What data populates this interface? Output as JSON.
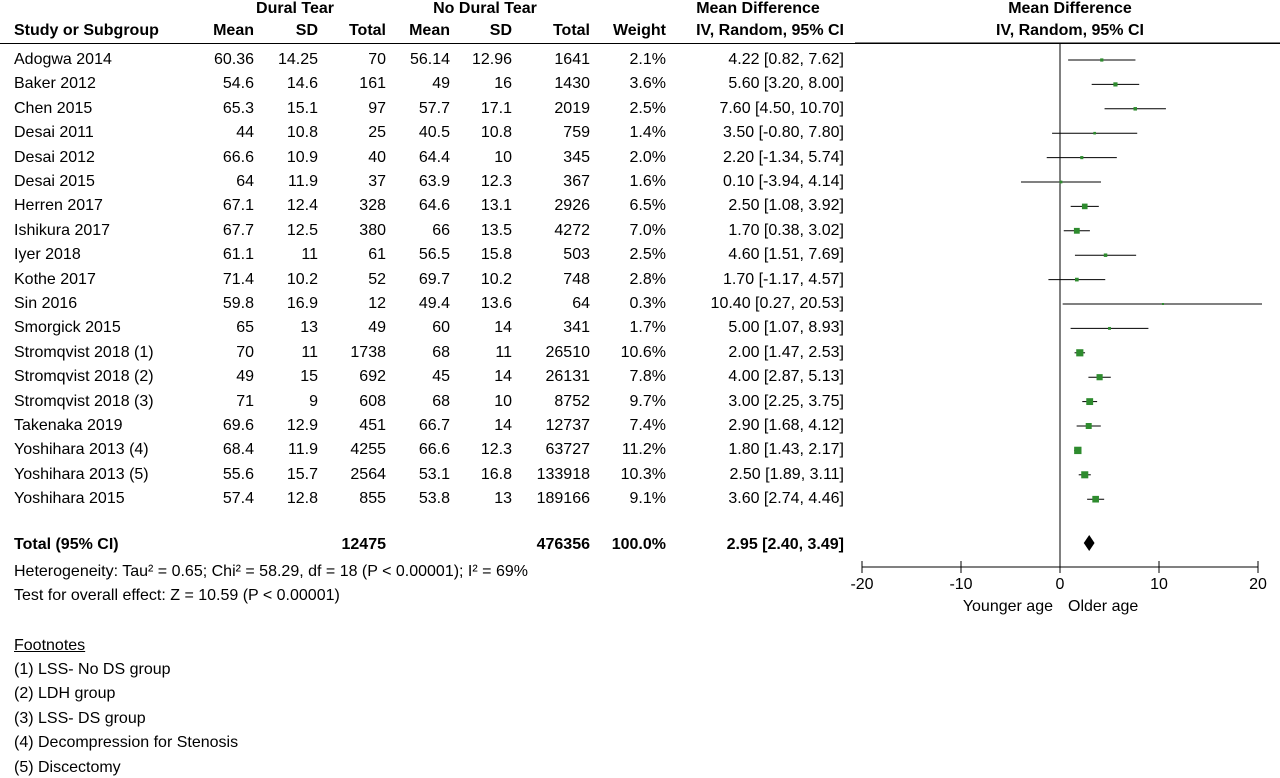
{
  "headers": {
    "group1": "Dural Tear",
    "group2": "No Dural Tear",
    "md_top": "Mean Difference",
    "md_sub": "IV, Random, 95% CI",
    "plot_top": "Mean Difference",
    "plot_sub": "IV, Random, 95% CI",
    "study": "Study or Subgroup",
    "mean1": "Mean",
    "sd1": "SD",
    "total1": "Total",
    "mean2": "Mean",
    "sd2": "SD",
    "total2": "Total",
    "weight": "Weight"
  },
  "rows": [
    {
      "study": "Adogwa 2014",
      "mean1": "60.36",
      "sd1": "14.25",
      "total1": "70",
      "mean2": "56.14",
      "sd2": "12.96",
      "total2": "1641",
      "weight": "2.1%",
      "ci": "4.22 [0.82, 7.62]"
    },
    {
      "study": "Baker 2012",
      "mean1": "54.6",
      "sd1": "14.6",
      "total1": "161",
      "mean2": "49",
      "sd2": "16",
      "total2": "1430",
      "weight": "3.6%",
      "ci": "5.60 [3.20, 8.00]"
    },
    {
      "study": "Chen 2015",
      "mean1": "65.3",
      "sd1": "15.1",
      "total1": "97",
      "mean2": "57.7",
      "sd2": "17.1",
      "total2": "2019",
      "weight": "2.5%",
      "ci": "7.60 [4.50, 10.70]"
    },
    {
      "study": "Desai 2011",
      "mean1": "44",
      "sd1": "10.8",
      "total1": "25",
      "mean2": "40.5",
      "sd2": "10.8",
      "total2": "759",
      "weight": "1.4%",
      "ci": "3.50 [-0.80, 7.80]"
    },
    {
      "study": "Desai 2012",
      "mean1": "66.6",
      "sd1": "10.9",
      "total1": "40",
      "mean2": "64.4",
      "sd2": "10",
      "total2": "345",
      "weight": "2.0%",
      "ci": "2.20 [-1.34, 5.74]"
    },
    {
      "study": "Desai 2015",
      "mean1": "64",
      "sd1": "11.9",
      "total1": "37",
      "mean2": "63.9",
      "sd2": "12.3",
      "total2": "367",
      "weight": "1.6%",
      "ci": "0.10 [-3.94, 4.14]"
    },
    {
      "study": "Herren 2017",
      "mean1": "67.1",
      "sd1": "12.4",
      "total1": "328",
      "mean2": "64.6",
      "sd2": "13.1",
      "total2": "2926",
      "weight": "6.5%",
      "ci": "2.50 [1.08, 3.92]"
    },
    {
      "study": "Ishikura 2017",
      "mean1": "67.7",
      "sd1": "12.5",
      "total1": "380",
      "mean2": "66",
      "sd2": "13.5",
      "total2": "4272",
      "weight": "7.0%",
      "ci": "1.70 [0.38, 3.02]"
    },
    {
      "study": "Iyer 2018",
      "mean1": "61.1",
      "sd1": "11",
      "total1": "61",
      "mean2": "56.5",
      "sd2": "15.8",
      "total2": "503",
      "weight": "2.5%",
      "ci": "4.60 [1.51, 7.69]"
    },
    {
      "study": "Kothe 2017",
      "mean1": "71.4",
      "sd1": "10.2",
      "total1": "52",
      "mean2": "69.7",
      "sd2": "10.2",
      "total2": "748",
      "weight": "2.8%",
      "ci": "1.70 [-1.17, 4.57]"
    },
    {
      "study": "Sin 2016",
      "mean1": "59.8",
      "sd1": "16.9",
      "total1": "12",
      "mean2": "49.4",
      "sd2": "13.6",
      "total2": "64",
      "weight": "0.3%",
      "ci": "10.40 [0.27, 20.53]"
    },
    {
      "study": "Smorgick 2015",
      "mean1": "65",
      "sd1": "13",
      "total1": "49",
      "mean2": "60",
      "sd2": "14",
      "total2": "341",
      "weight": "1.7%",
      "ci": "5.00 [1.07, 8.93]"
    },
    {
      "study": "Stromqvist 2018 (1)",
      "mean1": "70",
      "sd1": "11",
      "total1": "1738",
      "mean2": "68",
      "sd2": "11",
      "total2": "26510",
      "weight": "10.6%",
      "ci": "2.00 [1.47, 2.53]"
    },
    {
      "study": "Stromqvist 2018 (2)",
      "mean1": "49",
      "sd1": "15",
      "total1": "692",
      "mean2": "45",
      "sd2": "14",
      "total2": "26131",
      "weight": "7.8%",
      "ci": "4.00 [2.87, 5.13]"
    },
    {
      "study": "Stromqvist 2018 (3)",
      "mean1": "71",
      "sd1": "9",
      "total1": "608",
      "mean2": "68",
      "sd2": "10",
      "total2": "8752",
      "weight": "9.7%",
      "ci": "3.00 [2.25, 3.75]"
    },
    {
      "study": "Takenaka 2019",
      "mean1": "69.6",
      "sd1": "12.9",
      "total1": "451",
      "mean2": "66.7",
      "sd2": "14",
      "total2": "12737",
      "weight": "7.4%",
      "ci": "2.90 [1.68, 4.12]"
    },
    {
      "study": "Yoshihara 2013 (4)",
      "mean1": "68.4",
      "sd1": "11.9",
      "total1": "4255",
      "mean2": "66.6",
      "sd2": "12.3",
      "total2": "63727",
      "weight": "11.2%",
      "ci": "1.80 [1.43, 2.17]"
    },
    {
      "study": "Yoshihara 2013 (5)",
      "mean1": "55.6",
      "sd1": "15.7",
      "total1": "2564",
      "mean2": "53.1",
      "sd2": "16.8",
      "total2": "133918",
      "weight": "10.3%",
      "ci": "2.50 [1.89, 3.11]"
    },
    {
      "study": "Yoshihara 2015",
      "mean1": "57.4",
      "sd1": "12.8",
      "total1": "855",
      "mean2": "53.8",
      "sd2": "13",
      "total2": "189166",
      "weight": "9.1%",
      "ci": "3.60 [2.74, 4.46]"
    }
  ],
  "total": {
    "label": "Total (95% CI)",
    "total1": "12475",
    "total2": "476356",
    "weight": "100.0%",
    "ci": "2.95 [2.40, 3.49]"
  },
  "heterogeneity": "Heterogeneity: Tau² = 0.65; Chi² = 58.29, df = 18 (P < 0.00001); I² = 69%",
  "overall_effect": "Test for overall effect: Z = 10.59 (P < 0.00001)",
  "footnotes": {
    "title": "Footnotes",
    "items": [
      "(1) LSS- No DS group",
      "(2) LDH group",
      "(3) LSS- DS group",
      "(4) Decompression for Stenosis",
      "(5) Discectomy"
    ]
  },
  "colors": {
    "marker": "#2e8b2e",
    "line": "#000000"
  },
  "chart_data": {
    "type": "forest",
    "xlim": [
      -20,
      20
    ],
    "ticks": [
      -20,
      -10,
      0,
      10,
      20
    ],
    "tick_labels": [
      "-20",
      "-10",
      "0",
      "10",
      "20"
    ],
    "left_label": "Younger age",
    "right_label": "Older age",
    "studies": [
      {
        "name": "Adogwa 2014",
        "est": 4.22,
        "lo": 0.82,
        "hi": 7.62,
        "weight": 2.1
      },
      {
        "name": "Baker 2012",
        "est": 5.6,
        "lo": 3.2,
        "hi": 8.0,
        "weight": 3.6
      },
      {
        "name": "Chen 2015",
        "est": 7.6,
        "lo": 4.5,
        "hi": 10.7,
        "weight": 2.5
      },
      {
        "name": "Desai 2011",
        "est": 3.5,
        "lo": -0.8,
        "hi": 7.8,
        "weight": 1.4
      },
      {
        "name": "Desai 2012",
        "est": 2.2,
        "lo": -1.34,
        "hi": 5.74,
        "weight": 2.0
      },
      {
        "name": "Desai 2015",
        "est": 0.1,
        "lo": -3.94,
        "hi": 4.14,
        "weight": 1.6
      },
      {
        "name": "Herren 2017",
        "est": 2.5,
        "lo": 1.08,
        "hi": 3.92,
        "weight": 6.5
      },
      {
        "name": "Ishikura 2017",
        "est": 1.7,
        "lo": 0.38,
        "hi": 3.02,
        "weight": 7.0
      },
      {
        "name": "Iyer 2018",
        "est": 4.6,
        "lo": 1.51,
        "hi": 7.69,
        "weight": 2.5
      },
      {
        "name": "Kothe 2017",
        "est": 1.7,
        "lo": -1.17,
        "hi": 4.57,
        "weight": 2.8
      },
      {
        "name": "Sin 2016",
        "est": 10.4,
        "lo": 0.27,
        "hi": 20.53,
        "weight": 0.3
      },
      {
        "name": "Smorgick 2015",
        "est": 5.0,
        "lo": 1.07,
        "hi": 8.93,
        "weight": 1.7
      },
      {
        "name": "Stromqvist 2018 (1)",
        "est": 2.0,
        "lo": 1.47,
        "hi": 2.53,
        "weight": 10.6
      },
      {
        "name": "Stromqvist 2018 (2)",
        "est": 4.0,
        "lo": 2.87,
        "hi": 5.13,
        "weight": 7.8
      },
      {
        "name": "Stromqvist 2018 (3)",
        "est": 3.0,
        "lo": 2.25,
        "hi": 3.75,
        "weight": 9.7
      },
      {
        "name": "Takenaka 2019",
        "est": 2.9,
        "lo": 1.68,
        "hi": 4.12,
        "weight": 7.4
      },
      {
        "name": "Yoshihara 2013 (4)",
        "est": 1.8,
        "lo": 1.43,
        "hi": 2.17,
        "weight": 11.2
      },
      {
        "name": "Yoshihara 2013 (5)",
        "est": 2.5,
        "lo": 1.89,
        "hi": 3.11,
        "weight": 10.3
      },
      {
        "name": "Yoshihara 2015",
        "est": 3.6,
        "lo": 2.74,
        "hi": 4.46,
        "weight": 9.1
      }
    ],
    "pooled": {
      "est": 2.95,
      "lo": 2.4,
      "hi": 3.49
    }
  }
}
